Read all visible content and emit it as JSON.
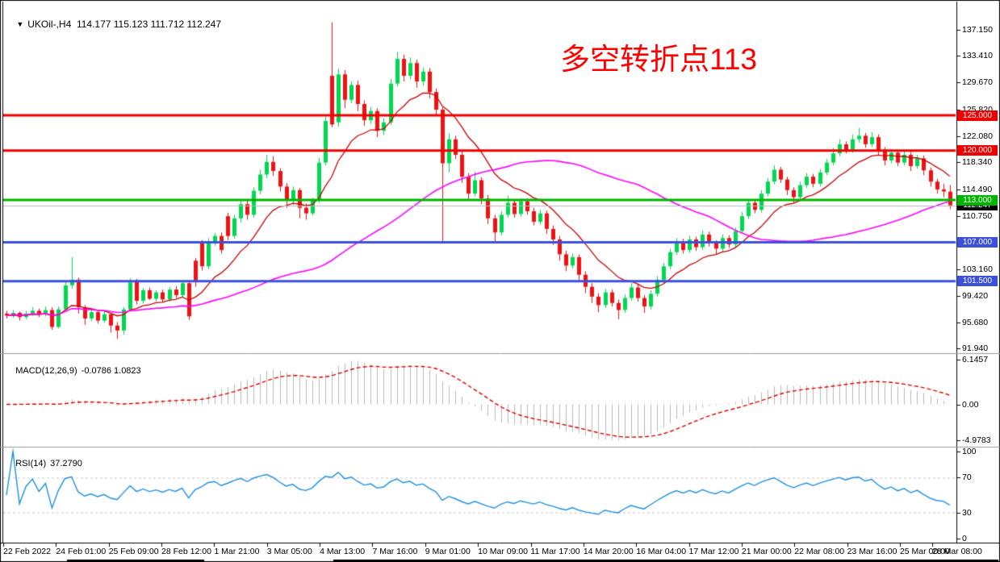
{
  "window": {
    "bg": "#ffffff",
    "border": "#000000"
  },
  "title": {
    "dropdown_glyph": "▼",
    "text": "UKOil-,H4  114.177 115.123 111.712 112.247"
  },
  "annotation": {
    "text": "多空转折点113",
    "color": "#ff0000"
  },
  "chart_data": {
    "type": "candlestick",
    "symbol": "UKOil-",
    "timeframe": "H4",
    "quote": {
      "open": 114.177,
      "high": 115.123,
      "low": 111.712,
      "close": 112.247
    },
    "colors": {
      "up": "#00d94f",
      "down": "#f01212",
      "ma_fast": "#c80000",
      "ma_slow": "#ff00ff",
      "current_price_line": "#b8b8b8",
      "macd_hist": "#b9b9b9",
      "macd_signal": "#e00000",
      "rsi_line": "#1c8fe3",
      "rsi_levels": "#c9c9c9",
      "axis_text": "#000000"
    },
    "price_axis_labels": [
      {
        "text": "137.150",
        "value": 137.15
      },
      {
        "text": "133.410",
        "value": 133.41
      },
      {
        "text": "129.670",
        "value": 129.67
      },
      {
        "text": "125.820",
        "value": 125.82
      },
      {
        "text": "122.080",
        "value": 122.08
      },
      {
        "text": "118.340",
        "value": 118.34
      },
      {
        "text": "114.490",
        "value": 114.49
      },
      {
        "text": "110.750",
        "value": 110.75
      },
      {
        "text": "107.000",
        "value": 107.0
      },
      {
        "text": "103.160",
        "value": 103.16
      },
      {
        "text": "99.420",
        "value": 99.42
      },
      {
        "text": "95.680",
        "value": 95.68
      },
      {
        "text": "91.940",
        "value": 91.94
      }
    ],
    "hlines": [
      {
        "label": "125.000",
        "value": 125.0,
        "color": "#ee0000"
      },
      {
        "label": "120.000",
        "value": 120.0,
        "color": "#ee0000"
      },
      {
        "label": "113.000",
        "value": 113.0,
        "color": "#00b400"
      },
      {
        "label": "107.000",
        "value": 107.0,
        "color": "#3c50dc"
      },
      {
        "label": "101.500",
        "value": 101.5,
        "color": "#3c50dc"
      }
    ],
    "current_price": {
      "label": "112.247",
      "value": 112.247,
      "badge_bg": "#000000"
    },
    "time_labels": [
      "22 Feb 2022",
      "24 Feb 01:00",
      "25 Feb 09:00",
      "28 Feb 12:00",
      "1 Mar 21:00",
      "3 Mar 05:00",
      "4 Mar 13:00",
      "7 Mar 16:00",
      "9 Mar 01:00",
      "10 Mar 09:00",
      "11 Mar 17:00",
      "14 Mar 20:00",
      "16 Mar 04:00",
      "17 Mar 12:00",
      "21 Mar 00:00",
      "22 Mar 08:00",
      "23 Mar 16:00",
      "25 Mar 00:00",
      "28 Mar 08:00"
    ],
    "ma_lines": [
      {
        "method": "ema",
        "period": 12,
        "color": "#c80000"
      },
      {
        "method": "sma",
        "period": 50,
        "color": "#ff00ff"
      }
    ],
    "macd": {
      "label": "MACD(12,26,9)",
      "values": "-0.0786 1.0823",
      "fast": 12,
      "slow": 26,
      "signal": 9,
      "axis": [
        {
          "text": "6.1457",
          "value": 6.1457
        },
        {
          "text": "0.00",
          "value": 0
        },
        {
          "text": "-4.9783",
          "value": -4.9783
        }
      ],
      "range": [
        -4.9783,
        6.1457
      ]
    },
    "rsi": {
      "label": "RSI(14)",
      "value": "37.2790",
      "period": 14,
      "axis": [
        {
          "text": "100",
          "value": 100
        },
        {
          "text": "70",
          "value": 70
        },
        {
          "text": "30",
          "value": 30
        },
        {
          "text": "0",
          "value": 0
        }
      ],
      "levels": [
        70,
        30
      ],
      "range": [
        0,
        100
      ]
    },
    "candles": [
      [
        96.9,
        97.3,
        96.2,
        96.6
      ],
      [
        96.6,
        97.4,
        96.3,
        97.0
      ],
      [
        97.0,
        97.2,
        95.9,
        96.4
      ],
      [
        96.4,
        97.3,
        96.1,
        96.9
      ],
      [
        96.9,
        97.8,
        96.6,
        97.3
      ],
      [
        97.3,
        97.6,
        96.4,
        96.8
      ],
      [
        96.8,
        97.9,
        96.5,
        97.4
      ],
      [
        97.4,
        97.8,
        94.6,
        95.0
      ],
      [
        95.0,
        97.9,
        94.8,
        97.5
      ],
      [
        97.5,
        101.6,
        97.3,
        100.9
      ],
      [
        100.9,
        104.9,
        100.4,
        101.7
      ],
      [
        101.7,
        102.0,
        96.9,
        97.8
      ],
      [
        97.8,
        98.1,
        95.3,
        96.2
      ],
      [
        96.2,
        97.6,
        95.8,
        97.1
      ],
      [
        97.1,
        97.4,
        95.5,
        95.9
      ],
      [
        95.9,
        97.2,
        95.6,
        96.8
      ],
      [
        96.8,
        97.0,
        94.2,
        95.2
      ],
      [
        95.2,
        95.7,
        93.3,
        94.5
      ],
      [
        94.5,
        97.8,
        93.9,
        97.5
      ],
      [
        97.5,
        101.9,
        97.2,
        101.3
      ],
      [
        101.6,
        101.8,
        98.2,
        98.7
      ],
      [
        98.7,
        100.5,
        98.3,
        100.2
      ],
      [
        100.2,
        100.6,
        98.8,
        99.0
      ],
      [
        99.0,
        100.2,
        98.6,
        99.9
      ],
      [
        99.9,
        100.3,
        98.5,
        98.9
      ],
      [
        98.9,
        100.7,
        98.6,
        100.3
      ],
      [
        100.3,
        100.8,
        99.1,
        99.5
      ],
      [
        99.5,
        101.5,
        99.2,
        101.2
      ],
      [
        101.2,
        101.6,
        96.0,
        96.5
      ],
      [
        104.4,
        104.8,
        100.7,
        101.4
      ],
      [
        107.1,
        107.3,
        103.0,
        103.6
      ],
      [
        103.6,
        107.6,
        103.2,
        107.0
      ],
      [
        107.0,
        108.3,
        106.5,
        107.9
      ],
      [
        107.9,
        108.4,
        105.4,
        105.9
      ],
      [
        110.7,
        111.2,
        107.3,
        107.9
      ],
      [
        107.9,
        110.9,
        107.5,
        110.4
      ],
      [
        110.4,
        112.9,
        109.8,
        112.4
      ],
      [
        112.4,
        113.0,
        110.2,
        110.9
      ],
      [
        110.9,
        114.8,
        110.5,
        114.3
      ],
      [
        114.3,
        117.3,
        113.8,
        116.6
      ],
      [
        116.6,
        119.4,
        116.1,
        118.4
      ],
      [
        118.4,
        119.2,
        116.4,
        117.1
      ],
      [
        117.1,
        117.5,
        114.2,
        114.9
      ],
      [
        114.9,
        115.4,
        111.9,
        112.9
      ],
      [
        112.9,
        114.9,
        112.3,
        114.4
      ],
      [
        114.4,
        114.7,
        110.4,
        111.9
      ],
      [
        111.9,
        112.5,
        110.2,
        111.1
      ],
      [
        111.1,
        113.3,
        110.8,
        112.9
      ],
      [
        112.9,
        119.0,
        112.6,
        118.3
      ],
      [
        118.3,
        124.8,
        117.9,
        124.2
      ],
      [
        130.6,
        138.2,
        123.3,
        123.7
      ],
      [
        124.0,
        131.6,
        123.4,
        130.8
      ],
      [
        130.8,
        131.4,
        126.0,
        127.2
      ],
      [
        127.2,
        129.8,
        126.7,
        129.3
      ],
      [
        129.3,
        129.9,
        125.6,
        126.6
      ],
      [
        126.6,
        127.1,
        123.5,
        124.3
      ],
      [
        124.3,
        126.2,
        123.8,
        125.6
      ],
      [
        125.6,
        126.0,
        121.9,
        122.8
      ],
      [
        122.8,
        124.6,
        122.2,
        124.0
      ],
      [
        124.0,
        130.2,
        123.6,
        129.5
      ],
      [
        129.5,
        134.0,
        129.1,
        133.0
      ],
      [
        133.0,
        133.6,
        129.8,
        130.6
      ],
      [
        130.6,
        133.2,
        130.1,
        132.4
      ],
      [
        132.4,
        132.9,
        128.9,
        129.8
      ],
      [
        129.8,
        131.8,
        129.2,
        131.2
      ],
      [
        131.2,
        131.7,
        127.4,
        128.3
      ],
      [
        128.3,
        128.8,
        124.9,
        125.8
      ],
      [
        125.8,
        126.2,
        106.9,
        118.2
      ],
      [
        118.2,
        122.4,
        116.9,
        121.6
      ],
      [
        121.6,
        122.1,
        118.8,
        119.4
      ],
      [
        119.4,
        119.9,
        115.4,
        116.3
      ],
      [
        116.3,
        116.8,
        113.0,
        113.9
      ],
      [
        113.9,
        117.0,
        113.5,
        115.8
      ],
      [
        115.8,
        116.2,
        112.4,
        113.2
      ],
      [
        113.2,
        113.7,
        109.6,
        110.4
      ],
      [
        110.4,
        110.9,
        107.1,
        108.4
      ],
      [
        108.4,
        111.4,
        108.0,
        110.9
      ],
      [
        110.9,
        113.6,
        110.5,
        112.6
      ],
      [
        112.6,
        113.1,
        110.5,
        111.0
      ],
      [
        111.0,
        113.2,
        110.6,
        112.8
      ],
      [
        112.8,
        113.2,
        110.9,
        111.4
      ],
      [
        111.4,
        111.9,
        109.4,
        109.9
      ],
      [
        109.9,
        111.6,
        109.5,
        111.1
      ],
      [
        111.1,
        111.5,
        108.2,
        108.9
      ],
      [
        108.9,
        109.4,
        106.6,
        107.4
      ],
      [
        107.4,
        107.9,
        104.4,
        105.3
      ],
      [
        105.3,
        105.8,
        102.9,
        103.7
      ],
      [
        103.7,
        105.4,
        103.3,
        104.9
      ],
      [
        104.9,
        105.3,
        101.6,
        102.4
      ],
      [
        102.4,
        102.9,
        99.8,
        100.7
      ],
      [
        100.7,
        101.2,
        98.4,
        99.3
      ],
      [
        99.3,
        99.8,
        97.1,
        98.1
      ],
      [
        98.1,
        100.4,
        97.7,
        99.9
      ],
      [
        99.9,
        100.3,
        97.9,
        98.4
      ],
      [
        98.4,
        98.9,
        96.1,
        97.4
      ],
      [
        97.4,
        99.6,
        97.0,
        99.1
      ],
      [
        99.1,
        101.2,
        98.7,
        100.6
      ],
      [
        100.6,
        101.0,
        98.6,
        99.1
      ],
      [
        99.1,
        99.5,
        97.0,
        97.9
      ],
      [
        97.9,
        100.2,
        97.5,
        99.7
      ],
      [
        99.7,
        102.2,
        99.3,
        101.7
      ],
      [
        101.7,
        104.1,
        101.3,
        103.6
      ],
      [
        103.6,
        106.1,
        103.2,
        105.6
      ],
      [
        105.6,
        107.6,
        105.2,
        107.1
      ],
      [
        107.1,
        107.5,
        105.4,
        105.9
      ],
      [
        105.9,
        107.9,
        105.5,
        107.4
      ],
      [
        107.4,
        107.8,
        105.8,
        106.3
      ],
      [
        106.3,
        108.7,
        105.9,
        108.1
      ],
      [
        108.1,
        108.5,
        106.4,
        106.9
      ],
      [
        106.9,
        107.3,
        105.3,
        106.1
      ],
      [
        106.1,
        108.1,
        105.7,
        107.6
      ],
      [
        107.6,
        108.0,
        106.2,
        106.7
      ],
      [
        106.7,
        109.1,
        106.3,
        108.6
      ],
      [
        108.6,
        111.3,
        108.2,
        110.7
      ],
      [
        110.7,
        113.1,
        110.3,
        112.6
      ],
      [
        112.6,
        113.0,
        111.1,
        111.6
      ],
      [
        111.6,
        114.4,
        111.2,
        113.9
      ],
      [
        113.9,
        116.1,
        113.5,
        115.6
      ],
      [
        115.6,
        117.9,
        115.2,
        117.3
      ],
      [
        117.3,
        117.7,
        115.4,
        115.9
      ],
      [
        115.9,
        116.3,
        113.7,
        114.4
      ],
      [
        114.4,
        114.8,
        112.6,
        113.4
      ],
      [
        113.4,
        115.6,
        113.0,
        115.1
      ],
      [
        115.1,
        116.8,
        114.7,
        116.3
      ],
      [
        116.3,
        116.7,
        114.8,
        115.3
      ],
      [
        115.3,
        117.4,
        114.9,
        116.9
      ],
      [
        116.9,
        118.8,
        116.5,
        118.3
      ],
      [
        118.3,
        120.4,
        117.9,
        119.6
      ],
      [
        119.6,
        121.6,
        119.2,
        120.9
      ],
      [
        120.9,
        121.3,
        119.6,
        120.1
      ],
      [
        120.1,
        122.3,
        119.7,
        121.6
      ],
      [
        121.6,
        123.2,
        121.1,
        122.1
      ],
      [
        122.1,
        122.5,
        120.4,
        120.9
      ],
      [
        120.9,
        122.6,
        120.5,
        121.9
      ],
      [
        121.9,
        122.3,
        119.4,
        120.1
      ],
      [
        120.1,
        120.5,
        117.9,
        118.6
      ],
      [
        118.6,
        120.2,
        118.2,
        119.7
      ],
      [
        119.7,
        120.1,
        117.8,
        118.3
      ],
      [
        118.3,
        120.1,
        117.9,
        119.4
      ],
      [
        119.4,
        119.8,
        117.1,
        117.8
      ],
      [
        117.8,
        119.4,
        117.4,
        118.9
      ],
      [
        118.9,
        119.3,
        116.5,
        117.2
      ],
      [
        117.2,
        117.6,
        114.9,
        115.6
      ],
      [
        115.6,
        116.0,
        113.9,
        114.5
      ],
      [
        114.5,
        115.3,
        113.4,
        114.2
      ],
      [
        114.177,
        115.123,
        111.712,
        112.247
      ]
    ]
  }
}
